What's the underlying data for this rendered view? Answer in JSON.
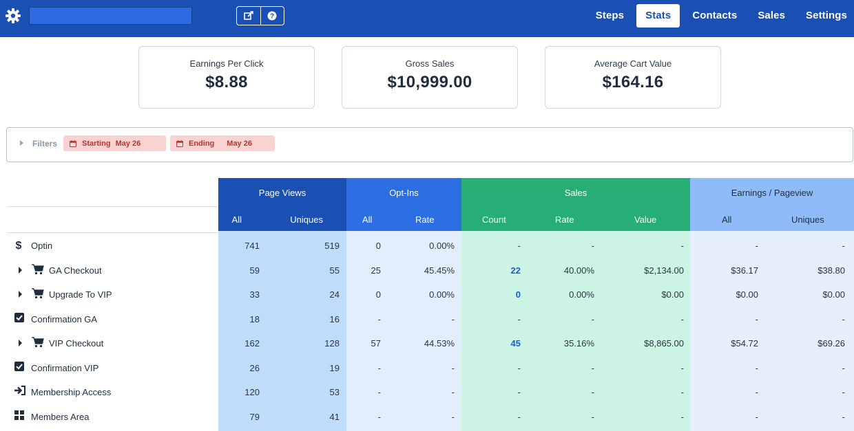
{
  "header": {
    "nav": [
      {
        "label": "Steps",
        "active": false
      },
      {
        "label": "Stats",
        "active": true
      },
      {
        "label": "Contacts",
        "active": false
      },
      {
        "label": "Sales",
        "active": false
      },
      {
        "label": "Settings",
        "active": false
      }
    ],
    "icons": [
      "gear-icon",
      "edit-icon",
      "help-icon"
    ],
    "brand_color": "#1a4fb4"
  },
  "metrics": [
    {
      "label": "Earnings Per Click",
      "value": "$8.88"
    },
    {
      "label": "Gross Sales",
      "value": "$10,999.00"
    },
    {
      "label": "Average Cart Value",
      "value": "$164.16"
    }
  ],
  "filters": {
    "label": "Filters",
    "starting_label": "Starting",
    "starting_date": "May 26",
    "ending_label": "Ending",
    "ending_date": "May 26"
  },
  "table": {
    "groups": {
      "page_views": {
        "title": "Page Views",
        "sub": [
          "All",
          "Uniques"
        ]
      },
      "opt_ins": {
        "title": "Opt-Ins",
        "sub": [
          "All",
          "Rate"
        ]
      },
      "sales": {
        "title": "Sales",
        "sub": [
          "Count",
          "Rate",
          "Value"
        ]
      },
      "earnings": {
        "title": "Earnings / Pageview",
        "sub": [
          "All",
          "Uniques"
        ]
      }
    },
    "rows": [
      {
        "name": "Optin",
        "icon": "dollar-icon",
        "expandable": false,
        "pv_all": "741",
        "pv_uniq": "519",
        "oi_all": "0",
        "oi_rate": "0.00%",
        "s_count": "-",
        "s_rate": "-",
        "s_value": "-",
        "e_all": "-",
        "e_uniq": "-"
      },
      {
        "name": "GA Checkout",
        "icon": "cart-icon",
        "expandable": true,
        "pv_all": "59",
        "pv_uniq": "55",
        "oi_all": "25",
        "oi_rate": "45.45%",
        "s_count": "22",
        "s_rate": "40.00%",
        "s_value": "$2,134.00",
        "e_all": "$36.17",
        "e_uniq": "$38.80"
      },
      {
        "name": "Upgrade To VIP",
        "icon": "cart-icon",
        "expandable": true,
        "pv_all": "33",
        "pv_uniq": "24",
        "oi_all": "0",
        "oi_rate": "0.00%",
        "s_count": "0",
        "s_rate": "0.00%",
        "s_value": "$0.00",
        "e_all": "$0.00",
        "e_uniq": "$0.00"
      },
      {
        "name": "Confirmation GA",
        "icon": "checkbox-icon",
        "expandable": false,
        "pv_all": "18",
        "pv_uniq": "16",
        "oi_all": "-",
        "oi_rate": "-",
        "s_count": "-",
        "s_rate": "-",
        "s_value": "-",
        "e_all": "-",
        "e_uniq": "-"
      },
      {
        "name": "VIP Checkout",
        "icon": "cart-icon",
        "expandable": true,
        "pv_all": "162",
        "pv_uniq": "128",
        "oi_all": "57",
        "oi_rate": "44.53%",
        "s_count": "45",
        "s_rate": "35.16%",
        "s_value": "$8,865.00",
        "e_all": "$54.72",
        "e_uniq": "$69.26"
      },
      {
        "name": "Confirmation VIP",
        "icon": "checkbox-icon",
        "expandable": false,
        "pv_all": "26",
        "pv_uniq": "19",
        "oi_all": "-",
        "oi_rate": "-",
        "s_count": "-",
        "s_rate": "-",
        "s_value": "-",
        "e_all": "-",
        "e_uniq": "-"
      },
      {
        "name": "Membership Access",
        "icon": "sign-in-icon",
        "expandable": false,
        "pv_all": "120",
        "pv_uniq": "53",
        "oi_all": "-",
        "oi_rate": "-",
        "s_count": "-",
        "s_rate": "-",
        "s_value": "-",
        "e_all": "-",
        "e_uniq": "-"
      },
      {
        "name": "Members Area",
        "icon": "grid-icon",
        "expandable": false,
        "pv_all": "79",
        "pv_uniq": "41",
        "oi_all": "-",
        "oi_rate": "-",
        "s_count": "-",
        "s_rate": "-",
        "s_value": "-",
        "e_all": "-",
        "e_uniq": "-"
      }
    ]
  }
}
